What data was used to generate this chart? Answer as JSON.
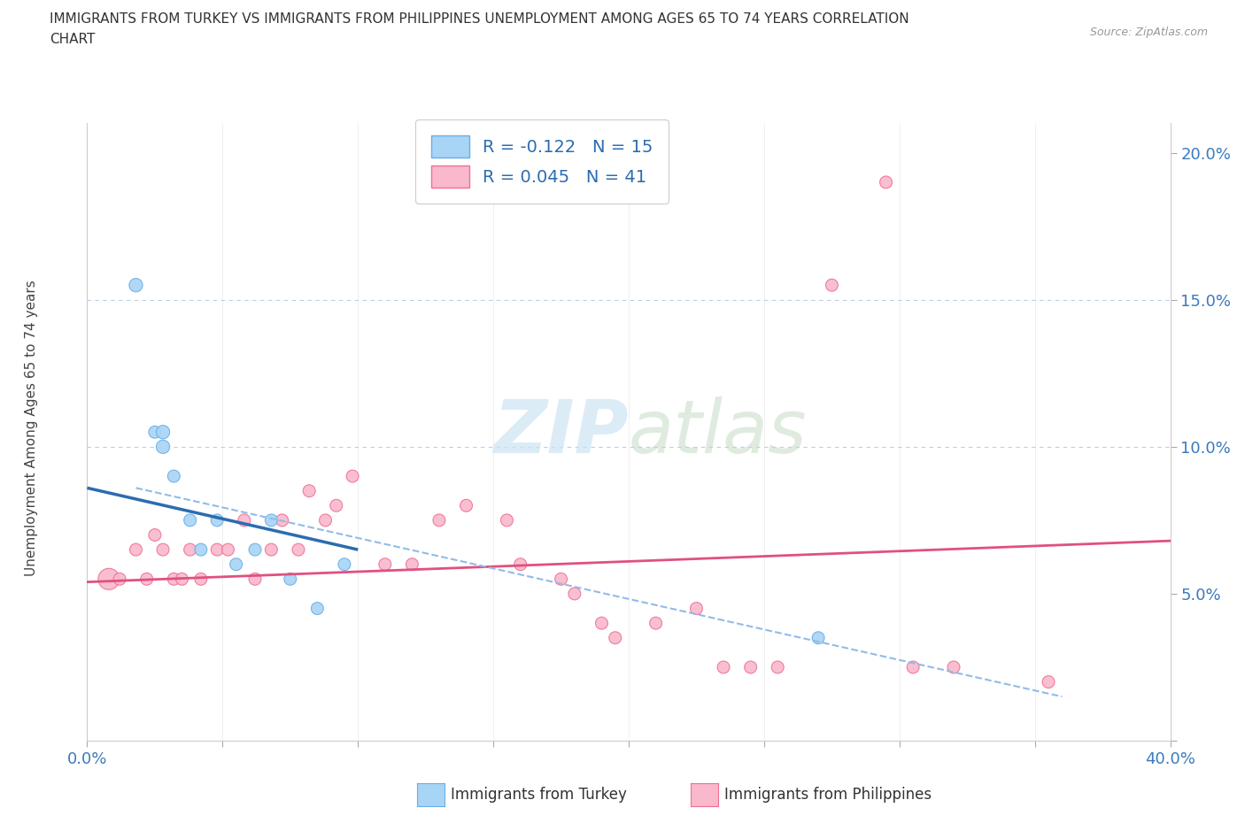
{
  "title_line1": "IMMIGRANTS FROM TURKEY VS IMMIGRANTS FROM PHILIPPINES UNEMPLOYMENT AMONG AGES 65 TO 74 YEARS CORRELATION",
  "title_line2": "CHART",
  "source": "Source: ZipAtlas.com",
  "ylabel": "Unemployment Among Ages 65 to 74 years",
  "xlim": [
    0.0,
    0.4
  ],
  "ylim": [
    0.0,
    0.21
  ],
  "xticks": [
    0.0,
    0.05,
    0.1,
    0.15,
    0.2,
    0.25,
    0.3,
    0.35,
    0.4
  ],
  "yticks": [
    0.0,
    0.05,
    0.1,
    0.15,
    0.2
  ],
  "turkey_color": "#a8d4f5",
  "turkey_edge_color": "#6aaee8",
  "philippines_color": "#f9b8cc",
  "philippines_edge_color": "#f07090",
  "turkey_line_color": "#2b6cb0",
  "philippines_line_color": "#e05080",
  "dashed_line_color": "#90bce8",
  "watermark_color": "#cce4f5",
  "legend_text_color": "#2b6cb0",
  "turkey_scatter_x": [
    0.018,
    0.025,
    0.028,
    0.028,
    0.032,
    0.038,
    0.042,
    0.048,
    0.055,
    0.062,
    0.068,
    0.075,
    0.085,
    0.095,
    0.27
  ],
  "turkey_scatter_y": [
    0.155,
    0.105,
    0.105,
    0.1,
    0.09,
    0.075,
    0.065,
    0.075,
    0.06,
    0.065,
    0.075,
    0.055,
    0.045,
    0.06,
    0.035
  ],
  "turkey_scatter_sizes": [
    120,
    100,
    120,
    120,
    100,
    100,
    100,
    100,
    100,
    100,
    100,
    100,
    100,
    100,
    100
  ],
  "philippines_scatter_x": [
    0.008,
    0.012,
    0.018,
    0.022,
    0.025,
    0.028,
    0.032,
    0.035,
    0.038,
    0.042,
    0.048,
    0.052,
    0.058,
    0.062,
    0.068,
    0.072,
    0.078,
    0.082,
    0.088,
    0.092,
    0.098,
    0.11,
    0.12,
    0.13,
    0.14,
    0.155,
    0.16,
    0.175,
    0.18,
    0.19,
    0.195,
    0.21,
    0.225,
    0.235,
    0.245,
    0.255,
    0.275,
    0.295,
    0.305,
    0.32,
    0.355
  ],
  "philippines_scatter_y": [
    0.055,
    0.055,
    0.065,
    0.055,
    0.07,
    0.065,
    0.055,
    0.055,
    0.065,
    0.055,
    0.065,
    0.065,
    0.075,
    0.055,
    0.065,
    0.075,
    0.065,
    0.085,
    0.075,
    0.08,
    0.09,
    0.06,
    0.06,
    0.075,
    0.08,
    0.075,
    0.06,
    0.055,
    0.05,
    0.04,
    0.035,
    0.04,
    0.045,
    0.025,
    0.025,
    0.025,
    0.155,
    0.19,
    0.025,
    0.025,
    0.02
  ],
  "philippines_scatter_sizes": [
    300,
    100,
    100,
    100,
    100,
    100,
    100,
    100,
    100,
    100,
    100,
    100,
    100,
    100,
    100,
    100,
    100,
    100,
    100,
    100,
    100,
    100,
    100,
    100,
    100,
    100,
    100,
    100,
    100,
    100,
    100,
    100,
    100,
    100,
    100,
    100,
    100,
    100,
    100,
    100,
    100
  ],
  "turkey_trend_x": [
    0.0,
    0.1
  ],
  "turkey_trend_y": [
    0.086,
    0.065
  ],
  "philippines_trend_x": [
    0.0,
    0.4
  ],
  "philippines_trend_y": [
    0.054,
    0.068
  ],
  "dashed_line_x": [
    0.018,
    0.36
  ],
  "dashed_line_y": [
    0.086,
    0.015
  ],
  "dotted_line_y1": 0.1,
  "dotted_line_y2": 0.15,
  "background_color": "#ffffff"
}
